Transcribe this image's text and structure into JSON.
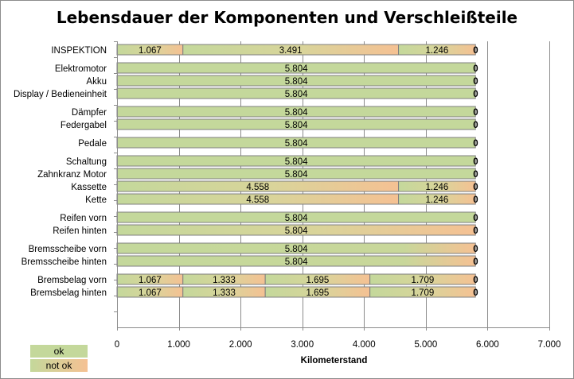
{
  "chart_data": {
    "type": "bar",
    "orientation": "horizontal",
    "stacked": true,
    "title": "Lebensdauer der Komponenten und Verschleißteile",
    "xlabel": "Kilometerstand",
    "ylabel": "",
    "xlim": [
      0,
      7000
    ],
    "xticks": [
      0,
      1000,
      2000,
      3000,
      4000,
      5000,
      6000,
      7000
    ],
    "xtick_labels": [
      "0",
      "1.000",
      "2.000",
      "3.000",
      "4.000",
      "5.000",
      "6.000",
      "7.000"
    ],
    "grid": true,
    "legend": [
      {
        "label": "ok",
        "color": "#c4d89b"
      },
      {
        "label": "not ok",
        "color": "#f5c193"
      }
    ],
    "rows": [
      {
        "label": "INSPEKTION",
        "group": 0,
        "segments": [
          {
            "value": 1067,
            "label": "1.067",
            "style": "ok-notok"
          },
          {
            "value": 3491,
            "label": "3.491",
            "style": "ok-notok"
          },
          {
            "value": 1246,
            "label": "1.246",
            "style": "ok-notok"
          }
        ],
        "end_label": "0"
      },
      {
        "label": "Elektromotor",
        "group": 1,
        "segments": [
          {
            "value": 5804,
            "label": "5.804",
            "style": "ok"
          }
        ],
        "end_label": "0"
      },
      {
        "label": "Akku",
        "group": 1,
        "segments": [
          {
            "value": 5804,
            "label": "5.804",
            "style": "ok"
          }
        ],
        "end_label": "0"
      },
      {
        "label": "Display / Bedieneinheit",
        "group": 1,
        "segments": [
          {
            "value": 5804,
            "label": "5.804",
            "style": "ok"
          }
        ],
        "end_label": "0"
      },
      {
        "label": "Dämpfer",
        "group": 2,
        "segments": [
          {
            "value": 5804,
            "label": "5.804",
            "style": "ok"
          }
        ],
        "end_label": "0"
      },
      {
        "label": "Federgabel",
        "group": 2,
        "segments": [
          {
            "value": 5804,
            "label": "5.804",
            "style": "ok"
          }
        ],
        "end_label": "0"
      },
      {
        "label": "Pedale",
        "group": 3,
        "segments": [
          {
            "value": 5804,
            "label": "5.804",
            "style": "ok"
          }
        ],
        "end_label": "0"
      },
      {
        "label": "Schaltung",
        "group": 4,
        "segments": [
          {
            "value": 5804,
            "label": "5.804",
            "style": "ok"
          }
        ],
        "end_label": "0"
      },
      {
        "label": "Zahnkranz Motor",
        "group": 4,
        "segments": [
          {
            "value": 5804,
            "label": "5.804",
            "style": "ok"
          }
        ],
        "end_label": "0"
      },
      {
        "label": "Kassette",
        "group": 4,
        "segments": [
          {
            "value": 4558,
            "label": "4.558",
            "style": "ok-notok"
          },
          {
            "value": 1246,
            "label": "1.246",
            "style": "ok-notok"
          }
        ],
        "end_label": "0"
      },
      {
        "label": "Kette",
        "group": 4,
        "segments": [
          {
            "value": 4558,
            "label": "4.558",
            "style": "ok-notok"
          },
          {
            "value": 1246,
            "label": "1.246",
            "style": "ok-notok"
          }
        ],
        "end_label": "0"
      },
      {
        "label": "Reifen vorn",
        "group": 5,
        "segments": [
          {
            "value": 5804,
            "label": "5.804",
            "style": "ok"
          }
        ],
        "end_label": "0"
      },
      {
        "label": "Reifen hinten",
        "group": 5,
        "segments": [
          {
            "value": 5804,
            "label": "5.804",
            "style": "ok-notok"
          }
        ],
        "end_label": "0"
      },
      {
        "label": "Bremsscheibe vorn",
        "group": 6,
        "segments": [
          {
            "value": 5804,
            "label": "5.804",
            "style": "ok-notok-tail"
          }
        ],
        "end_label": "0"
      },
      {
        "label": "Bremsscheibe hinten",
        "group": 6,
        "segments": [
          {
            "value": 5804,
            "label": "5.804",
            "style": "ok-notok-tail"
          }
        ],
        "end_label": "0"
      },
      {
        "label": "Bremsbelag vorn",
        "group": 7,
        "segments": [
          {
            "value": 1067,
            "label": "1.067",
            "style": "ok-notok"
          },
          {
            "value": 1333,
            "label": "1.333",
            "style": "ok-notok"
          },
          {
            "value": 1695,
            "label": "1.695",
            "style": "ok-notok"
          },
          {
            "value": 1709,
            "label": "1.709",
            "style": "ok-notok"
          }
        ],
        "end_label": "0"
      },
      {
        "label": "Bremsbelag hinten",
        "group": 7,
        "segments": [
          {
            "value": 1067,
            "label": "1.067",
            "style": "ok-notok"
          },
          {
            "value": 1333,
            "label": "1.333",
            "style": "ok-notok"
          },
          {
            "value": 1695,
            "label": "1.695",
            "style": "ok-notok"
          },
          {
            "value": 1709,
            "label": "1.709",
            "style": "ok-notok"
          }
        ],
        "end_label": "0"
      }
    ]
  }
}
